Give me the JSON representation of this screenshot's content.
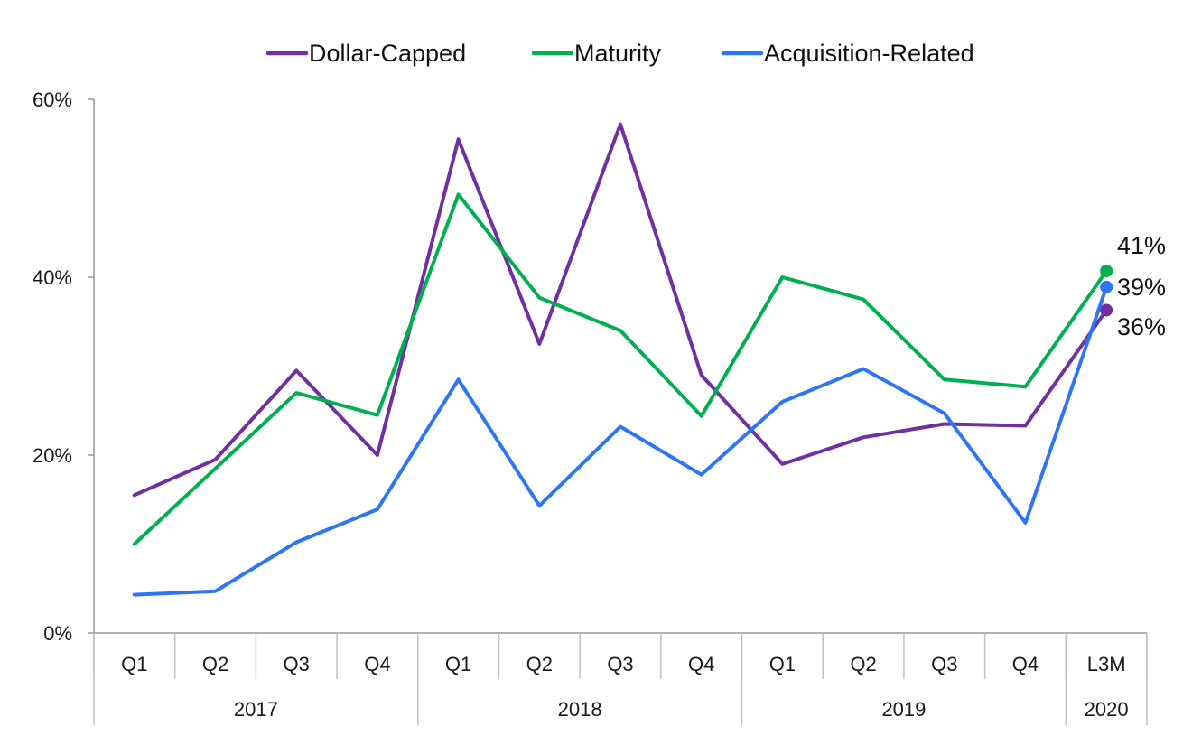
{
  "chart_data": {
    "type": "line",
    "categories": [
      "Q1",
      "Q2",
      "Q3",
      "Q4",
      "Q1",
      "Q2",
      "Q3",
      "Q4",
      "Q1",
      "Q2",
      "Q3",
      "Q4",
      "L3M"
    ],
    "groups": [
      {
        "label": "2017",
        "count": 4
      },
      {
        "label": "2018",
        "count": 4
      },
      {
        "label": "2019",
        "count": 4
      },
      {
        "label": "2020",
        "count": 1
      }
    ],
    "ylim": [
      0,
      60
    ],
    "yticks": [
      0,
      20,
      40,
      60
    ],
    "ytick_labels": [
      "0%",
      "20%",
      "40%",
      "60%"
    ],
    "series": [
      {
        "name": "Dollar-Capped",
        "color": "#7030a0",
        "values": [
          15.5,
          19.5,
          29.5,
          20.0,
          55.5,
          32.5,
          57.2,
          29.0,
          19.0,
          22.0,
          23.5,
          23.3,
          36.3
        ]
      },
      {
        "name": "Maturity",
        "color": "#00b050",
        "values": [
          10.0,
          18.5,
          27.0,
          24.5,
          49.3,
          37.7,
          34.0,
          24.4,
          40.0,
          37.5,
          28.5,
          27.7,
          40.7
        ]
      },
      {
        "name": "Acquisition-Related",
        "color": "#2e75f6",
        "values": [
          4.3,
          4.7,
          10.2,
          13.9,
          28.5,
          14.3,
          23.2,
          17.8,
          26.0,
          29.7,
          24.7,
          12.4,
          38.9
        ]
      }
    ],
    "end_labels": [
      {
        "text": "41%",
        "color": "#00b050"
      },
      {
        "text": "39%",
        "color": "#0070c0"
      },
      {
        "text": "36%",
        "color": "#7030a0"
      }
    ],
    "legend_position": "top",
    "grid": false
  }
}
